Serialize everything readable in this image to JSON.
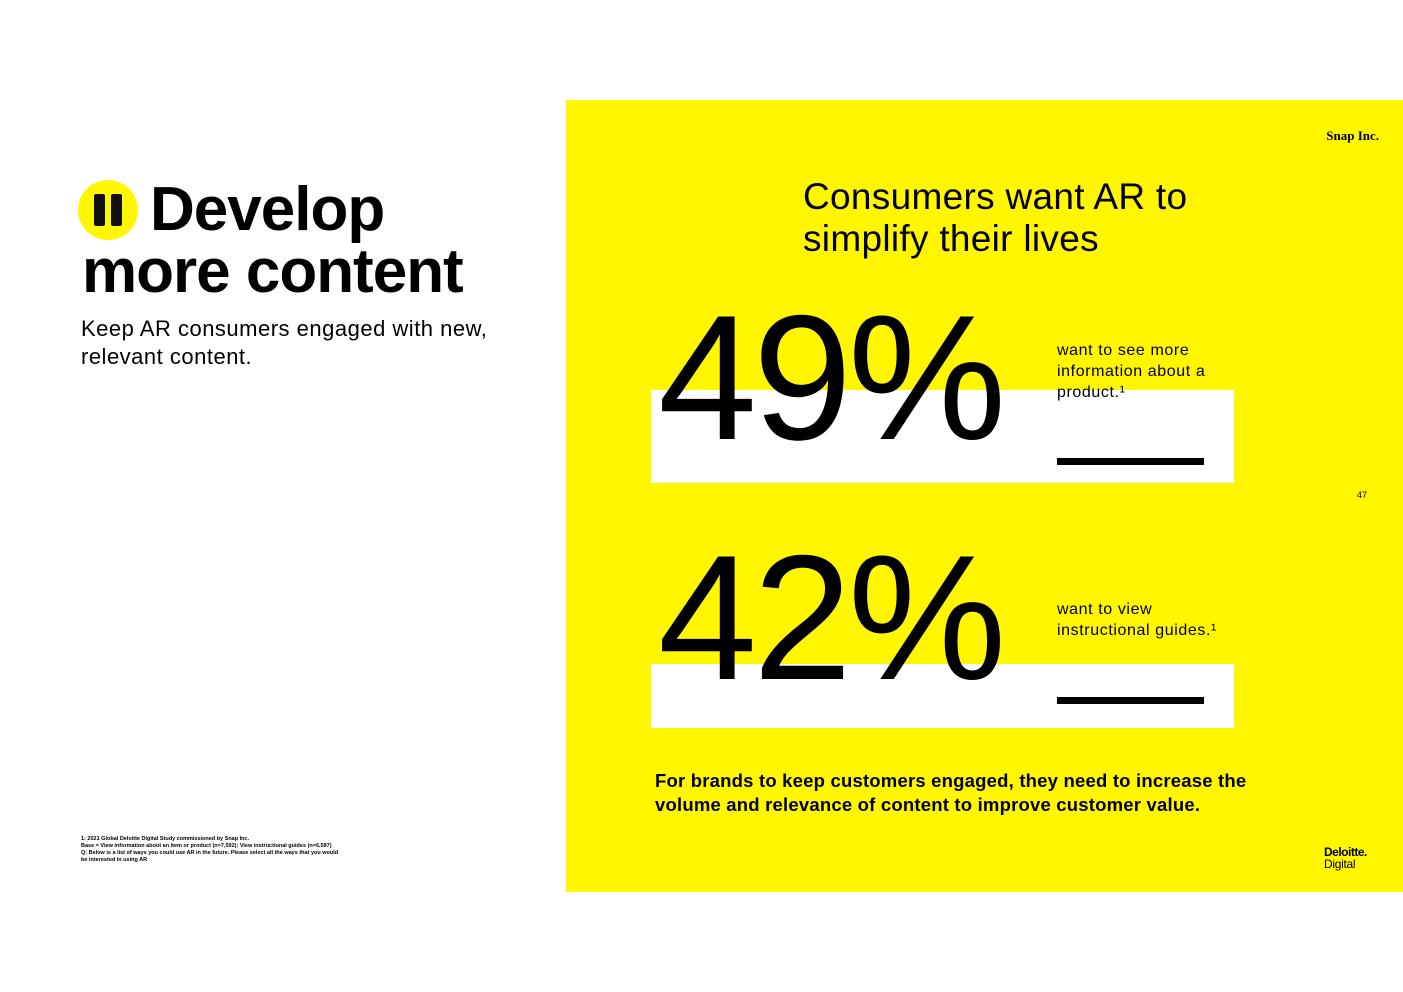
{
  "left": {
    "title_line1": "Develop",
    "title_line2": "more content",
    "subtitle": "Keep AR consumers engaged with new, relevant content.",
    "footnote": [
      "1: 2021 Global Deloitte Digital Study commissioned by Snap Inc.",
      "Base = View information about an item or product (n=7,592); View instructional guides (n=6,587)",
      "Q: Below is a list of ways you could use AR in the future. Please select all the ways that you would",
      "be interested in using AR"
    ]
  },
  "panel": {
    "brand": "Snap Inc.",
    "heading": "Consumers want AR to simplify their lives",
    "stats": [
      {
        "value": "49%",
        "description": "want to see more information about a product.¹"
      },
      {
        "value": "42%",
        "description": "want to view instructional guides.¹"
      }
    ],
    "bottom_text": "For brands to keep customers engaged, they need to increase the volume and relevance of content to improve customer value.",
    "page_number": "47",
    "logo_line1": "Deloitte.",
    "logo_line2": "Digital"
  },
  "colors": {
    "accent_yellow": "#FFF600",
    "text": "#000000",
    "background": "#FFFFFF"
  }
}
